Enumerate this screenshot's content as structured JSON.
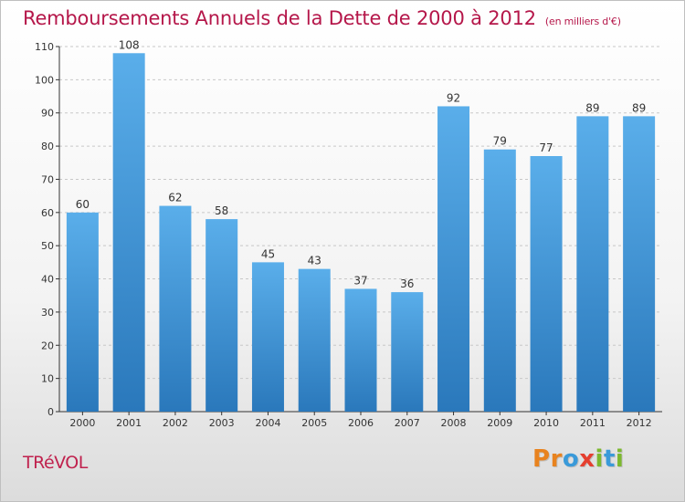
{
  "header": {
    "title": "Remboursements Annuels de la Dette de 2000 à 2012",
    "subtitle": "(en milliers d'€)"
  },
  "footer": {
    "place": "TRéVOL",
    "logo_letters": [
      "P",
      "r",
      "o",
      "x",
      "i",
      "t",
      "i"
    ],
    "logo_colors": [
      "#e8831f",
      "#e8831f",
      "#3a9ad9",
      "#e53f2f",
      "#7cb82f",
      "#3a9ad9",
      "#7cb82f"
    ]
  },
  "chart_data": {
    "type": "bar",
    "categories": [
      "2000",
      "2001",
      "2002",
      "2003",
      "2004",
      "2005",
      "2006",
      "2007",
      "2008",
      "2009",
      "2010",
      "2011",
      "2012"
    ],
    "values": [
      60,
      108,
      62,
      58,
      45,
      43,
      37,
      36,
      92,
      79,
      77,
      89,
      89
    ],
    "ylim": [
      0,
      110
    ],
    "yticks": [
      0,
      10,
      20,
      30,
      40,
      50,
      60,
      70,
      80,
      90,
      100,
      110
    ],
    "grid": true,
    "bar_color_light": "#5aaeea",
    "bar_color_dark": "#2a78bb",
    "axis_color": "#333333",
    "grid_color": "#c8c8c8"
  }
}
